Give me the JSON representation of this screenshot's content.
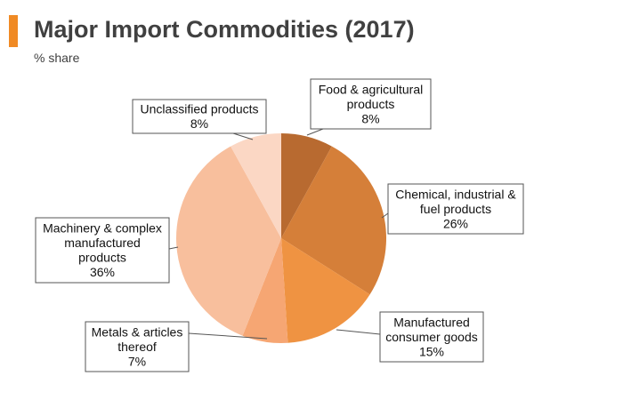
{
  "header": {
    "title": "Major Import Commodities (2017)",
    "subtitle": "% share"
  },
  "chart_data": {
    "type": "pie",
    "title": "Major Import Commodities (2017)",
    "subtitle": "% share",
    "unit": "%",
    "slices": [
      {
        "label": "Food & agricultural products",
        "value": 8,
        "value_label": "8%",
        "color": "#b86a30"
      },
      {
        "label": "Chemical, industrial & fuel products",
        "value": 26,
        "value_label": "26%",
        "color": "#d57f39"
      },
      {
        "label": "Manufactured consumer goods",
        "value": 15,
        "value_label": "15%",
        "color": "#ef9342"
      },
      {
        "label": "Metals & articles thereof",
        "value": 7,
        "value_label": "7%",
        "color": "#f6a673"
      },
      {
        "label": "Machinery & complex manufactured products",
        "value": 36,
        "value_label": "36%",
        "color": "#f8bf9d"
      },
      {
        "label": "Unclassified products",
        "value": 8,
        "value_label": "8%",
        "color": "#fbd7c4"
      }
    ]
  }
}
